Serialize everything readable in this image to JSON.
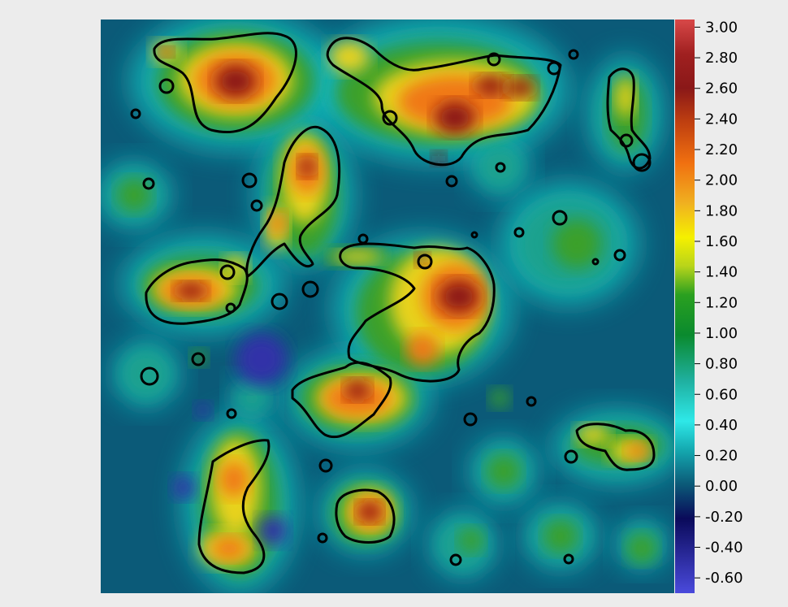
{
  "chart_data": {
    "type": "heatmap",
    "title": "",
    "xlabel": "",
    "ylabel": "",
    "colormap": "jet-like",
    "value_range": [
      -0.7,
      3.05
    ],
    "contour_level": 1.0,
    "colorbar": {
      "position": "right",
      "ticks": [
        "3.00",
        "2.80",
        "2.60",
        "2.40",
        "2.20",
        "2.00",
        "1.80",
        "1.60",
        "1.40",
        "1.20",
        "1.00",
        "0.80",
        "0.60",
        "0.40",
        "0.20",
        "0.00",
        "-0.20",
        "-0.40",
        "-0.60"
      ],
      "tick_values": [
        3.0,
        2.8,
        2.6,
        2.4,
        2.2,
        2.0,
        1.8,
        1.6,
        1.4,
        1.2,
        1.0,
        0.8,
        0.6,
        0.4,
        0.2,
        0.0,
        -0.2,
        -0.4,
        -0.6
      ]
    },
    "colors": {
      "background": "#ececec",
      "field_base": "#0b5a78",
      "contour": "#000000"
    }
  }
}
